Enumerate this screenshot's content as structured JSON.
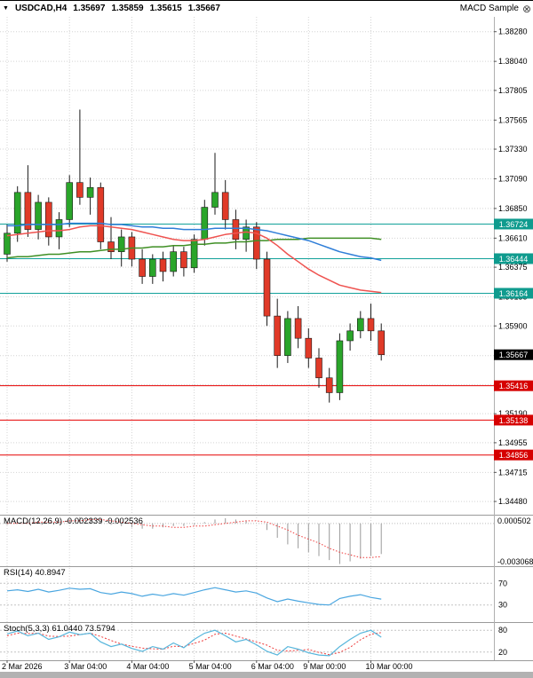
{
  "header": {
    "dropdown_icon": "▼",
    "symbol": "USDCAD,H4",
    "open": "1.35697",
    "high": "1.35859",
    "low": "1.35615",
    "close": "1.35667",
    "expert": {
      "label": "MACD Sample",
      "close_icon": "⊗"
    }
  },
  "panes": {
    "macd_label": "MACD(12,26,9) -0.002339 -0.002536",
    "rsi_label": "RSI(14) 40.8947",
    "stoch_label": "Stoch(5,3,3) 61.0440 73.5794"
  },
  "colors": {
    "bull": "#2aa52a",
    "bear": "#e03a28",
    "wick": "#1a1a1a",
    "ma_blue": "#2f7ed8",
    "ma_red": "#ef5350",
    "ma_green": "#3f8f24",
    "level_teal": "#12a19a",
    "level_red": "#e60000",
    "badge_teal": "#0f9b8e",
    "badge_red": "#d60000",
    "badge_black": "#000000",
    "grid": "#d4d4d4",
    "separator": "#9a9a9a",
    "macd_hist": "#9a9a9a",
    "macd_signal": "#ee3b3b",
    "rsi_line": "#4aa6e0",
    "stoch_k": "#57b6dc",
    "stoch_d": "#ee3b3b"
  },
  "chart_data": {
    "type": "candlestick",
    "title": "USDCAD,H4",
    "x_ticks": [
      {
        "index": 0,
        "label": "2 Mar 2026"
      },
      {
        "index": 6,
        "label": "3 Mar 04:00"
      },
      {
        "index": 12,
        "label": "4 Mar 04:00"
      },
      {
        "index": 18,
        "label": "5 Mar 04:00"
      },
      {
        "index": 24,
        "label": "6 Mar 04:00"
      },
      {
        "index": 29,
        "label": "9 Mar 00:00"
      },
      {
        "index": 35,
        "label": "10 Mar 00:00"
      }
    ],
    "y_range": {
      "min": 1.3438,
      "max": 1.384
    },
    "y_ticks": [
      1.3828,
      1.3804,
      1.37805,
      1.37565,
      1.3733,
      1.3709,
      1.3685,
      1.3661,
      1.36375,
      1.36135,
      1.359,
      1.3566,
      1.35425,
      1.3519,
      1.34955,
      1.34715,
      1.3448
    ],
    "levels": [
      {
        "price": 1.36724,
        "color": "teal"
      },
      {
        "price": 1.36444,
        "color": "teal"
      },
      {
        "price": 1.36164,
        "color": "teal"
      },
      {
        "price": 1.35416,
        "color": "red"
      },
      {
        "price": 1.35138,
        "color": "red"
      },
      {
        "price": 1.34856,
        "color": "red"
      }
    ],
    "current_price": 1.35667,
    "candles": [
      [
        1.3648,
        1.3672,
        1.3642,
        1.3665
      ],
      [
        1.3665,
        1.3703,
        1.3658,
        1.3698
      ],
      [
        1.3698,
        1.372,
        1.3662,
        1.3668
      ],
      [
        1.3668,
        1.3696,
        1.366,
        1.369
      ],
      [
        1.369,
        1.3694,
        1.3655,
        1.3662
      ],
      [
        1.3662,
        1.3682,
        1.3652,
        1.3676
      ],
      [
        1.3676,
        1.3712,
        1.367,
        1.3706
      ],
      [
        1.3706,
        1.3765,
        1.3688,
        1.3694
      ],
      [
        1.3694,
        1.371,
        1.368,
        1.3702
      ],
      [
        1.3702,
        1.3706,
        1.3652,
        1.3658
      ],
      [
        1.3658,
        1.3678,
        1.3644,
        1.365
      ],
      [
        1.365,
        1.3668,
        1.3638,
        1.3662
      ],
      [
        1.3662,
        1.3666,
        1.3638,
        1.3644
      ],
      [
        1.3644,
        1.3652,
        1.3624,
        1.363
      ],
      [
        1.363,
        1.3648,
        1.3624,
        1.3644
      ],
      [
        1.3644,
        1.365,
        1.3626,
        1.3634
      ],
      [
        1.3634,
        1.3655,
        1.363,
        1.365
      ],
      [
        1.365,
        1.3654,
        1.363,
        1.3637
      ],
      [
        1.3637,
        1.3664,
        1.3633,
        1.366
      ],
      [
        1.366,
        1.3692,
        1.3655,
        1.3686
      ],
      [
        1.3686,
        1.373,
        1.368,
        1.3698
      ],
      [
        1.3698,
        1.3708,
        1.3668,
        1.3676
      ],
      [
        1.3676,
        1.3684,
        1.3652,
        1.366
      ],
      [
        1.366,
        1.3676,
        1.365,
        1.367
      ],
      [
        1.367,
        1.3674,
        1.3636,
        1.3644
      ],
      [
        1.3644,
        1.365,
        1.359,
        1.3598
      ],
      [
        1.3598,
        1.3612,
        1.3556,
        1.3566
      ],
      [
        1.3566,
        1.3602,
        1.356,
        1.3596
      ],
      [
        1.3596,
        1.3606,
        1.3572,
        1.358
      ],
      [
        1.358,
        1.3588,
        1.3556,
        1.3564
      ],
      [
        1.3564,
        1.3572,
        1.354,
        1.3548
      ],
      [
        1.3548,
        1.3556,
        1.3528,
        1.3536
      ],
      [
        1.3536,
        1.3584,
        1.353,
        1.3578
      ],
      [
        1.3578,
        1.3592,
        1.357,
        1.3586
      ],
      [
        1.3586,
        1.3602,
        1.358,
        1.3596
      ],
      [
        1.3596,
        1.3608,
        1.3578,
        1.3586
      ],
      [
        1.3586,
        1.3592,
        1.3562,
        1.35667
      ]
    ],
    "ma": {
      "blue": [
        1.3671,
        1.3671,
        1.3672,
        1.3672,
        1.3672,
        1.3672,
        1.3673,
        1.3673,
        1.3673,
        1.3673,
        1.3672,
        1.3672,
        1.3671,
        1.367,
        1.367,
        1.3669,
        1.3669,
        1.3668,
        1.3668,
        1.3668,
        1.3669,
        1.3669,
        1.3669,
        1.3669,
        1.3668,
        1.3667,
        1.3665,
        1.3663,
        1.3661,
        1.3659,
        1.3656,
        1.3653,
        1.365,
        1.3648,
        1.3646,
        1.3645,
        1.3643
      ],
      "red": [
        1.3663,
        1.3664,
        1.3665,
        1.3666,
        1.3667,
        1.3667,
        1.3668,
        1.367,
        1.3671,
        1.3671,
        1.367,
        1.3669,
        1.3668,
        1.3666,
        1.3664,
        1.3662,
        1.366,
        1.3659,
        1.3659,
        1.366,
        1.3662,
        1.3664,
        1.3665,
        1.3666,
        1.3665,
        1.3661,
        1.3655,
        1.3648,
        1.3642,
        1.3636,
        1.3631,
        1.3627,
        1.3623,
        1.3621,
        1.3619,
        1.3618,
        1.3617
      ],
      "green": [
        1.3645,
        1.3646,
        1.3646,
        1.3647,
        1.3648,
        1.3648,
        1.3649,
        1.365,
        1.365,
        1.3651,
        1.3652,
        1.3652,
        1.3653,
        1.3653,
        1.3654,
        1.3654,
        1.3655,
        1.3655,
        1.3656,
        1.3656,
        1.3657,
        1.3657,
        1.3658,
        1.3658,
        1.3659,
        1.3659,
        1.366,
        1.366,
        1.366,
        1.3661,
        1.3661,
        1.3661,
        1.3661,
        1.3661,
        1.3661,
        1.3661,
        1.366
      ]
    },
    "macd": {
      "name": "MACD(12,26,9)",
      "main_value": -0.002339,
      "signal_value": -0.002536,
      "range": {
        "min": -0.0032,
        "max": 0.0006
      },
      "axis_labels": [
        0.000502,
        -0.003068
      ],
      "histogram": [
        -0.0001,
        0.0,
        0.0001,
        0.0002,
        0.0002,
        0.0001,
        0.0003,
        0.0005,
        0.0004,
        0.0002,
        -0.0001,
        -0.0002,
        -0.0003,
        -0.0004,
        -0.0004,
        -0.0003,
        -0.0002,
        -0.0002,
        -0.0001,
        0.0001,
        0.0003,
        0.0004,
        0.0003,
        0.0002,
        0.0,
        -0.0005,
        -0.0011,
        -0.0016,
        -0.0019,
        -0.0022,
        -0.0025,
        -0.0028,
        -0.0031,
        -0.0029,
        -0.0027,
        -0.0025,
        -0.002339
      ],
      "signal": [
        0.0,
        0.0,
        0.0,
        0.0001,
        0.0001,
        0.0001,
        0.0002,
        0.0002,
        0.0003,
        0.0003,
        0.0002,
        0.0001,
        0.0,
        -0.0001,
        -0.0002,
        -0.0002,
        -0.0003,
        -0.0003,
        -0.0002,
        -0.0002,
        -0.0001,
        0.0,
        0.0001,
        0.0002,
        0.0002,
        0.0001,
        -0.0002,
        -0.0005,
        -0.0009,
        -0.0012,
        -0.0015,
        -0.0019,
        -0.0022,
        -0.0024,
        -0.0026,
        -0.0026,
        -0.002536
      ]
    },
    "rsi": {
      "name": "RSI(14)",
      "value": 40.8947,
      "levels": [
        70,
        30
      ],
      "values": [
        56,
        58,
        55,
        59,
        54,
        57,
        61,
        59,
        60,
        53,
        50,
        54,
        51,
        46,
        50,
        47,
        51,
        48,
        53,
        58,
        62,
        58,
        54,
        56,
        52,
        43,
        36,
        41,
        37,
        34,
        31,
        30,
        42,
        46,
        49,
        44,
        40.89
      ]
    },
    "stoch": {
      "name": "Stoch(5,3,3)",
      "k_value": 61.044,
      "d_value": 73.5794,
      "levels": [
        80,
        20
      ],
      "k": [
        70,
        78,
        65,
        72,
        55,
        62,
        75,
        68,
        72,
        48,
        35,
        42,
        30,
        22,
        35,
        28,
        45,
        32,
        55,
        72,
        80,
        65,
        48,
        55,
        40,
        22,
        12,
        35,
        28,
        18,
        12,
        10,
        35,
        55,
        72,
        80,
        61.04
      ],
      "d": [
        65,
        72,
        71,
        72,
        64,
        63,
        64,
        68,
        72,
        63,
        52,
        42,
        36,
        31,
        29,
        28,
        36,
        35,
        44,
        53,
        69,
        72,
        64,
        56,
        48,
        39,
        25,
        23,
        25,
        27,
        19,
        13,
        19,
        33,
        54,
        69,
        73.58
      ]
    }
  }
}
